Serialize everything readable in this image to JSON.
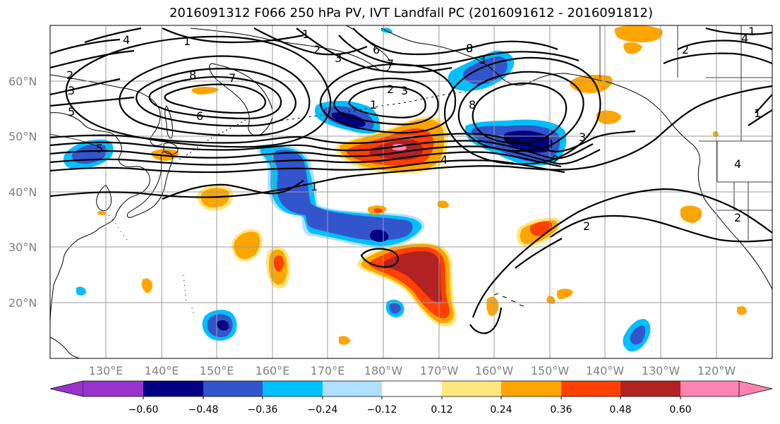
{
  "title": "2016091312 F066 250 hPa PV, IVT Landfall PC (2016091612 - 2016091812)",
  "lat_labels": [
    "60°N",
    "50°N",
    "40°N",
    "30°N",
    "20°N"
  ],
  "lon_labels": [
    "130°E",
    "140°E",
    "150°E",
    "160°E",
    "170°E",
    "180°W",
    "170°W",
    "160°W",
    "150°W",
    "140°W",
    "130°W",
    "120°W"
  ],
  "contour_labels": [
    "1",
    "2",
    "3",
    "4",
    "5",
    "6",
    "7",
    "8",
    "1",
    "2",
    "3",
    "4",
    "5",
    "6",
    "7",
    "8",
    "1",
    "2",
    "3",
    "1",
    "2",
    "3",
    "4",
    "1",
    "2",
    "1",
    "2",
    "2",
    "3",
    "4",
    "8",
    "8"
  ],
  "colorbar": {
    "tick_labels": [
      "−0.60",
      "−0.48",
      "−0.36",
      "−0.24",
      "−0.12",
      "0.12",
      "0.24",
      "0.36",
      "0.48",
      "0.60"
    ],
    "colors": [
      "#9933cc",
      "#000080",
      "#3355cc",
      "#00bfff",
      "#b0e0ff",
      "#ffffff",
      "#ffe680",
      "#ffa500",
      "#ff4000",
      "#b22222",
      "#ff85b0"
    ]
  },
  "shading_colors": {
    "neg_060": "#000080",
    "neg_048": "#3355cc",
    "neg_036": "#00bfff",
    "neg_024": "#b0e0ff",
    "pos_024": "#ffe680",
    "pos_036": "#ffa500",
    "pos_048": "#ff4000",
    "pos_060": "#b22222",
    "pos_max": "#ff85b0"
  }
}
